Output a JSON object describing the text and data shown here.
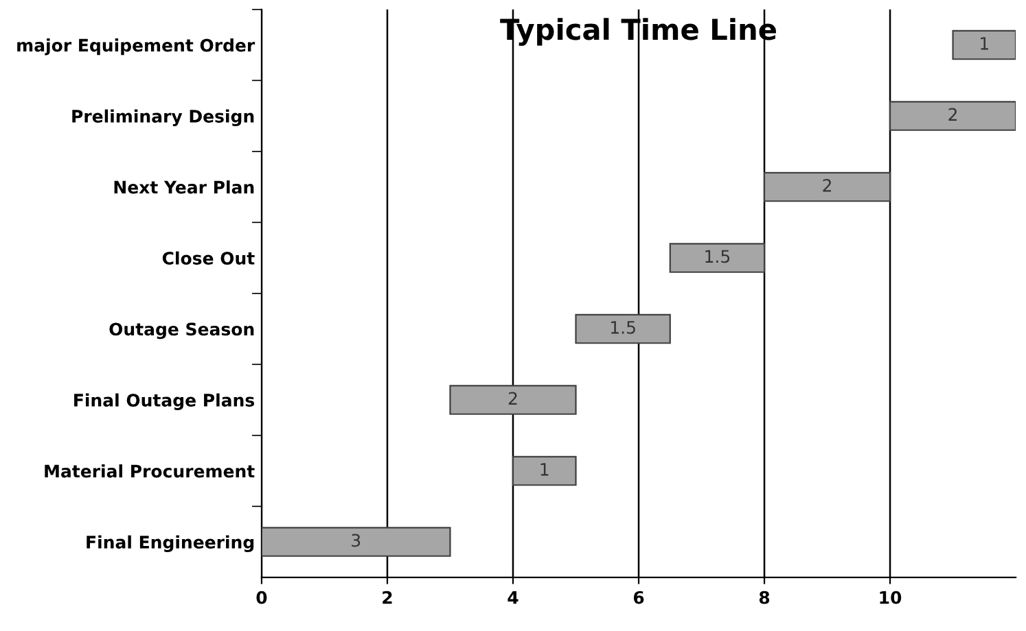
{
  "chart_data": {
    "type": "bar",
    "orientation": "horizontal",
    "title": "Typical Time Line",
    "categories": [
      "major Equipement Order",
      "Preliminary Design",
      "Next Year Plan",
      "Close Out",
      "Outage Season",
      "Final Outage Plans",
      "Material Procurement",
      "Final Engineering"
    ],
    "base": [
      11,
      10,
      8,
      6.5,
      5,
      3,
      4,
      0
    ],
    "values": [
      1,
      2,
      2,
      1.5,
      1.5,
      2,
      1,
      3
    ],
    "color": "#a6a6a6",
    "data_labels": true,
    "xlim": [
      0,
      12
    ],
    "xticks": [
      0,
      2,
      4,
      6,
      8,
      10
    ],
    "grid": "x"
  }
}
